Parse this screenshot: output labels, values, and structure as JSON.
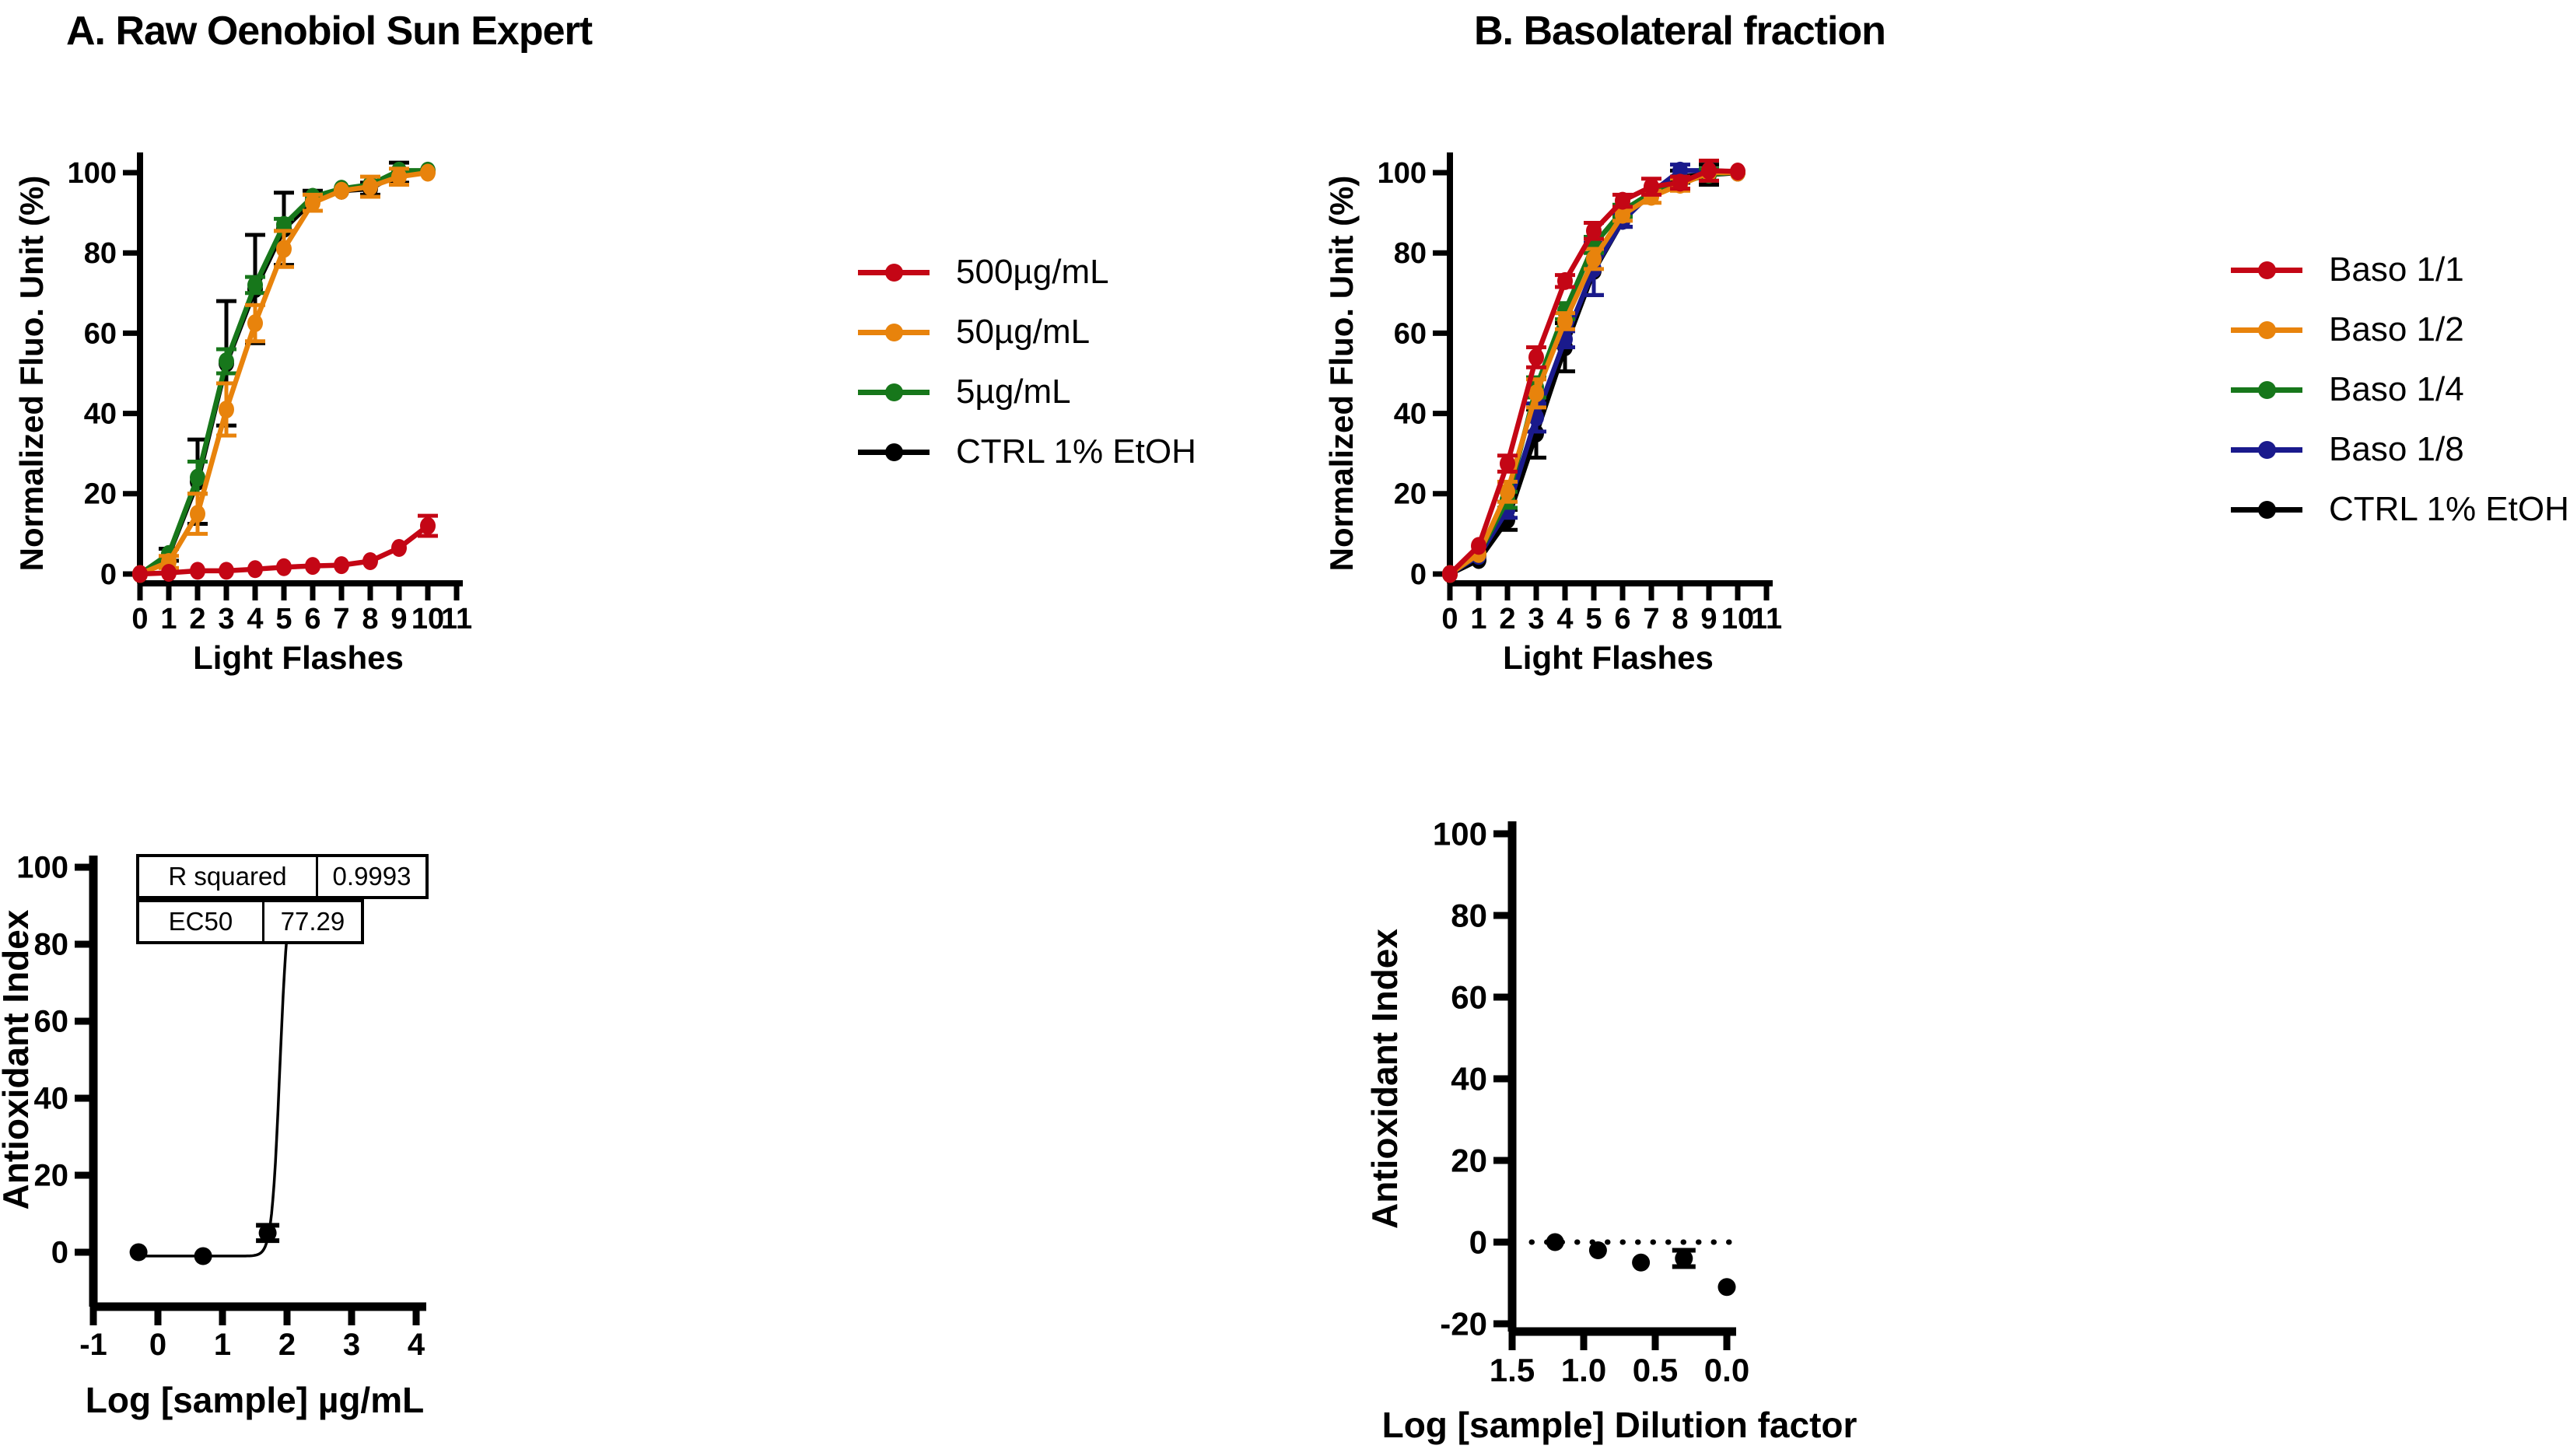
{
  "chart_data": [
    {
      "id": "raw-oenobiol-flash-response",
      "type": "line",
      "title": "A. Raw Oenobiol Sun Expert",
      "xlabel": "Light Flashes",
      "ylabel": "Normalized Fluo. Unit (%)",
      "x": [
        0,
        1,
        2,
        3,
        4,
        5,
        6,
        7,
        8,
        9,
        10
      ],
      "xlim": [
        0,
        11
      ],
      "xticks": [
        0,
        1,
        2,
        3,
        4,
        5,
        6,
        7,
        8,
        9,
        10,
        11
      ],
      "ylim": [
        0,
        100
      ],
      "yticks": [
        0,
        20,
        40,
        60,
        80,
        100
      ],
      "grid": false,
      "legend_position": "right",
      "series": [
        {
          "name": "500µg/mL",
          "color": "#c40615",
          "values": [
            0,
            0.3,
            0.8,
            0.8,
            1.2,
            1.7,
            2,
            2.2,
            3.2,
            6.5,
            12
          ],
          "errors": [
            0,
            0,
            0,
            0,
            0,
            0,
            0,
            0,
            0.6,
            0.8,
            2.5
          ]
        },
        {
          "name": "50µg/mL",
          "color": "#e8830c",
          "values": [
            0,
            3,
            15,
            41,
            62.5,
            81,
            92.5,
            95.5,
            96.5,
            99,
            100
          ],
          "errors": [
            0,
            1.5,
            5,
            6.5,
            4.5,
            4.5,
            2,
            1,
            2.5,
            2,
            0.5
          ]
        },
        {
          "name": "5µg/mL",
          "color": "#17771b",
          "values": [
            0,
            5,
            24,
            53,
            72,
            87,
            94,
            96,
            97,
            100.5,
            100.5
          ],
          "errors": [
            0,
            1,
            4,
            3,
            2,
            1.5,
            1,
            1,
            1,
            1,
            0.5
          ]
        },
        {
          "name": "CTRL 1% EtOH",
          "color": "#000000",
          "values": [
            0,
            4.8,
            23,
            52.5,
            71,
            86,
            93,
            95.5,
            96,
            100,
            100.3
          ],
          "errors": [
            0,
            1.5,
            10.5,
            15.5,
            13.5,
            9,
            2.5,
            1,
            1.5,
            2.5,
            0.5
          ]
        }
      ]
    },
    {
      "id": "basolateral-flash-response",
      "type": "line",
      "title": "B. Basolateral fraction",
      "xlabel": "Light Flashes",
      "ylabel": "Normalized Fluo. Unit (%)",
      "x": [
        0,
        1,
        2,
        3,
        4,
        5,
        6,
        7,
        8,
        9,
        10
      ],
      "xlim": [
        0,
        11
      ],
      "xticks": [
        0,
        1,
        2,
        3,
        4,
        5,
        6,
        7,
        8,
        9,
        10,
        11
      ],
      "ylim": [
        0,
        100
      ],
      "yticks": [
        0,
        20,
        40,
        60,
        80,
        100
      ],
      "grid": false,
      "legend_position": "right",
      "series": [
        {
          "name": "Baso 1/1",
          "color": "#c40615",
          "values": [
            0,
            7,
            27.5,
            54,
            73,
            85.5,
            93,
            96.5,
            97.5,
            100.5,
            100.3
          ],
          "errors": [
            0,
            1,
            2,
            2.5,
            1.5,
            2,
            1.5,
            2,
            1.5,
            2.5,
            0.5
          ]
        },
        {
          "name": "Baso 1/2",
          "color": "#e8830c",
          "values": [
            0,
            5,
            20.5,
            45,
            63,
            78.5,
            89.5,
            94,
            97,
            100,
            100
          ],
          "errors": [
            0,
            1,
            2.5,
            3.5,
            2,
            2.5,
            1.5,
            1.5,
            1.5,
            1,
            0.5
          ]
        },
        {
          "name": "Baso 1/4",
          "color": "#17771b",
          "values": [
            0,
            5,
            18.5,
            46.5,
            65.5,
            82,
            90.5,
            95,
            97.5,
            99.5,
            100.2
          ],
          "errors": [
            0,
            1,
            2,
            2.5,
            2,
            2,
            1.5,
            1,
            1.5,
            1.5,
            0.5
          ]
        },
        {
          "name": "Baso 1/8",
          "color": "#1a1a8c",
          "values": [
            0,
            4.5,
            16,
            39,
            58.5,
            76,
            88,
            95,
            100.5,
            100.5,
            100.2
          ],
          "errors": [
            0,
            1,
            2,
            3.5,
            2,
            6.5,
            1.5,
            1,
            1.5,
            2.5,
            0.5
          ]
        },
        {
          "name": "CTRL 1% EtOH",
          "color": "#000000",
          "values": [
            0,
            3.5,
            13.5,
            35,
            56.5,
            75.5,
            88,
            95.5,
            99,
            99.5,
            100
          ],
          "errors": [
            0,
            1,
            2.5,
            6,
            6,
            6,
            1.5,
            1,
            1.5,
            2.5,
            0.5
          ]
        }
      ]
    },
    {
      "id": "dose-response-fit",
      "type": "scatter",
      "title": "",
      "xlabel": "Log [sample] µg/mL",
      "ylabel": "Antioxidant Index",
      "xlim": [
        -1,
        4
      ],
      "xticks": [
        -1,
        0,
        1,
        2,
        3,
        4
      ],
      "ylim": [
        0,
        100
      ],
      "yticks": [
        0,
        20,
        40,
        60,
        80,
        100
      ],
      "grid": false,
      "point_color": "#000000",
      "points": {
        "x": [
          -0.3,
          0.7,
          1.7,
          2.7
        ],
        "y": [
          0,
          -1,
          5,
          96
        ],
        "errors": [
          0.8,
          0.8,
          2,
          0.8
        ]
      },
      "fit": {
        "model": "sigmoid-4PL",
        "bottom": -1,
        "top": 96,
        "logEC50": 1.888,
        "hill": 7,
        "x_range": [
          -0.3,
          3.7
        ]
      },
      "stats": [
        {
          "label": "R squared",
          "value": "0.9993"
        },
        {
          "label": "EC50",
          "value": "77.29"
        }
      ]
    },
    {
      "id": "basolateral-antioxidant-index",
      "type": "scatter",
      "title": "",
      "xlabel": "Log [sample] Dilution factor",
      "ylabel": "Antioxidant Index",
      "xlim": [
        1.5,
        0.0
      ],
      "xticks": [
        1.5,
        1.0,
        0.5,
        0.0
      ],
      "xtick_labels": [
        "1.5",
        "1.0",
        "0.5",
        "0.0"
      ],
      "ylim": [
        -20,
        100
      ],
      "yticks": [
        -20,
        0,
        20,
        40,
        60,
        80,
        100
      ],
      "grid": false,
      "zero_line": {
        "show": true,
        "style": "dotted",
        "y": 0
      },
      "point_color": "#000000",
      "points": {
        "x": [
          1.2,
          0.9,
          0.6,
          0.3,
          0.0
        ],
        "y": [
          0,
          -2,
          -5,
          -4,
          -11
        ],
        "errors": [
          0.8,
          0.8,
          0.8,
          2,
          0.8
        ]
      }
    }
  ]
}
